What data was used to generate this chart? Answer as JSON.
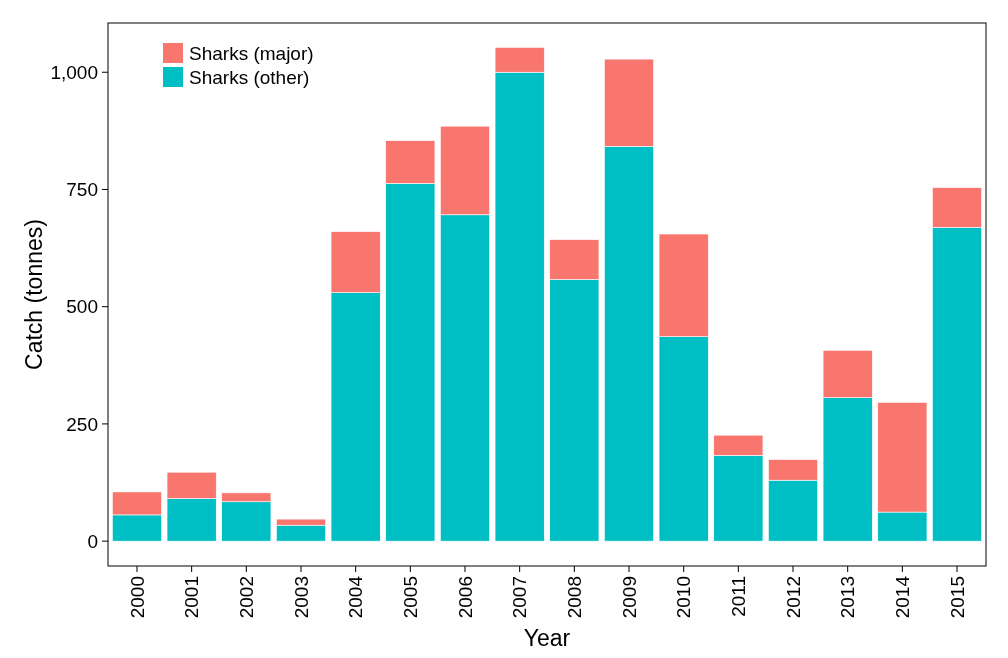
{
  "chart_data": {
    "type": "bar",
    "stacked": true,
    "xlabel": "Year",
    "ylabel": "Catch (tonnes)",
    "categories": [
      "2000",
      "2001",
      "2002",
      "2003",
      "2004",
      "2005",
      "2006",
      "2007",
      "2008",
      "2009",
      "2010",
      "2011",
      "2012",
      "2013",
      "2014",
      "2015"
    ],
    "series": [
      {
        "name": "Sharks (other)",
        "color": "#00bfc4",
        "values": [
          56,
          91,
          84,
          34,
          530,
          763,
          696,
          1000,
          558,
          842,
          436,
          183,
          130,
          306,
          62,
          669
        ]
      },
      {
        "name": "Sharks (major)",
        "color": "#f8766d",
        "values": [
          49,
          56,
          19,
          13,
          130,
          91,
          189,
          53,
          85,
          186,
          219,
          43,
          44,
          101,
          234,
          85
        ]
      }
    ],
    "ylim": [
      -53,
      1105
    ],
    "yticks": [
      0,
      250,
      500,
      750,
      {
        "value": 1000,
        "label": "1,000"
      }
    ],
    "grid": false,
    "legend": "top left"
  }
}
